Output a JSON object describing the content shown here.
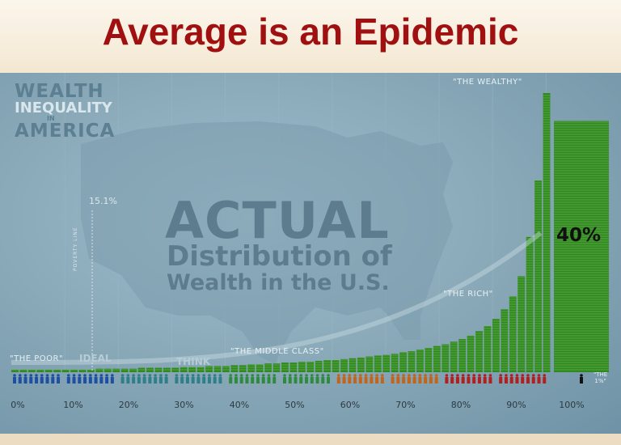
{
  "slide_title": "Average is an Epidemic",
  "infographic": {
    "corner_title": {
      "line1": "WEALTH",
      "line2": "INEQUALITY",
      "line3": "IN",
      "line4": "AMERICA"
    },
    "big_text": {
      "line1": "ACTUAL",
      "line2": "Distribution of",
      "line3": "Wealth in the U.S."
    },
    "ghost_labels": {
      "ideal": "IDEAL",
      "think": "THINK"
    },
    "poverty": {
      "value": "15.1%",
      "label": "POVERTY LINE"
    },
    "top_share": "40%",
    "one_percent": {
      "line1": "\"THE",
      "line2": "1%\""
    }
  },
  "chart_data": {
    "type": "bar",
    "title": "",
    "xlabel": "",
    "ylabel": "",
    "x_ticks": [
      "0%",
      "10%",
      "20%",
      "30%",
      "40%",
      "50%",
      "60%",
      "70%",
      "80%",
      "90%",
      "100%"
    ],
    "group_labels": [
      "\"THE POOR\"",
      "\"THE MIDDLE CLASS\"",
      "\"THE RICH\"",
      "\"THE WEALTHY\""
    ],
    "population_colors": [
      "#1f4fa0",
      "#1f4fa0",
      "#2f7f88",
      "#2f7f88",
      "#2f8a3e",
      "#2f8a3e",
      "#c2641a",
      "#c2641a",
      "#b11f1f",
      "#b11f1f"
    ],
    "bar_color": "#2f8a1e",
    "top_1_percent_share": 40,
    "bar_heights": [
      0.3,
      0.3,
      0.3,
      0.3,
      0.3,
      0.3,
      0.3,
      0.3,
      0.3,
      0.3,
      0.4,
      0.4,
      0.4,
      0.4,
      0.4,
      0.5,
      0.5,
      0.5,
      0.5,
      0.5,
      0.6,
      0.6,
      0.6,
      0.7,
      0.7,
      0.7,
      0.8,
      0.8,
      0.9,
      0.9,
      1.0,
      1.0,
      1.1,
      1.1,
      1.2,
      1.2,
      1.3,
      1.4,
      1.4,
      1.5,
      1.6,
      1.7,
      1.8,
      1.9,
      2.0,
      2.1,
      2.3,
      2.4,
      2.6,
      2.8,
      3.0,
      3.2,
      3.5,
      3.8,
      4.2,
      4.7,
      5.3,
      6.1,
      7.2,
      8.7,
      11.0,
      15.5,
      22.0,
      32.0
    ]
  }
}
